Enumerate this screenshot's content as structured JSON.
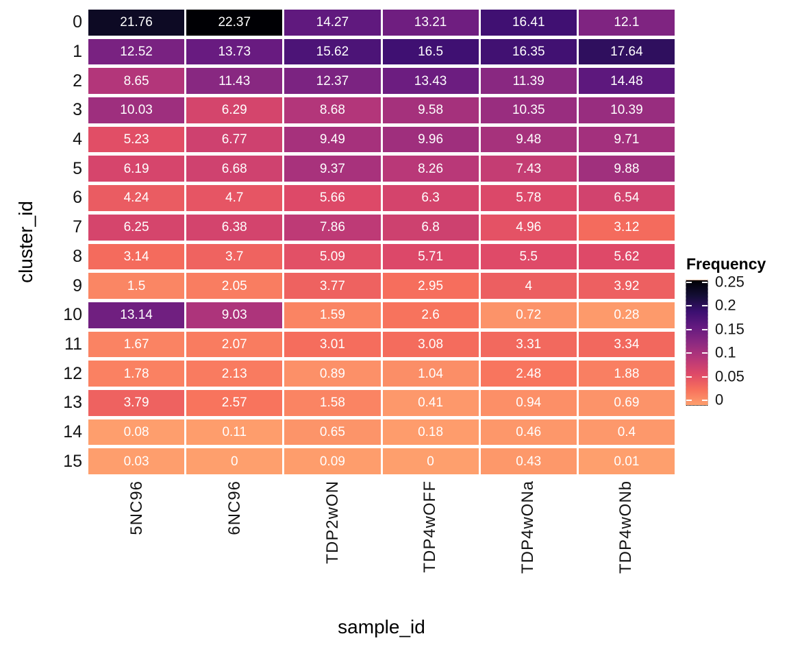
{
  "chart_data": {
    "type": "heatmap",
    "title": "",
    "xlabel": "sample_id",
    "ylabel": "cluster_id",
    "x_categories": [
      "5NC96",
      "6NC96",
      "TDP2wON",
      "TDP4wOFF",
      "TDP4wONa",
      "TDP4wONb"
    ],
    "y_categories": [
      "0",
      "1",
      "2",
      "3",
      "4",
      "5",
      "6",
      "7",
      "8",
      "9",
      "10",
      "11",
      "12",
      "13",
      "14",
      "15"
    ],
    "values": [
      [
        21.76,
        22.37,
        14.27,
        13.21,
        16.41,
        12.1
      ],
      [
        12.52,
        13.73,
        15.62,
        16.5,
        16.35,
        17.64
      ],
      [
        8.65,
        11.43,
        12.37,
        13.43,
        11.39,
        14.48
      ],
      [
        10.03,
        6.29,
        8.68,
        9.58,
        10.35,
        10.39
      ],
      [
        5.23,
        6.77,
        9.49,
        9.96,
        9.48,
        9.71
      ],
      [
        6.19,
        6.68,
        9.37,
        8.26,
        7.43,
        9.88
      ],
      [
        4.24,
        4.7,
        5.66,
        6.3,
        5.78,
        6.54
      ],
      [
        6.25,
        6.38,
        7.86,
        6.8,
        4.96,
        3.12
      ],
      [
        3.14,
        3.7,
        5.09,
        5.71,
        5.5,
        5.62
      ],
      [
        1.5,
        2.05,
        3.77,
        2.95,
        4,
        3.92
      ],
      [
        13.14,
        9.03,
        1.59,
        2.6,
        0.72,
        0.28
      ],
      [
        1.67,
        2.07,
        3.01,
        3.08,
        3.31,
        3.34
      ],
      [
        1.78,
        2.13,
        0.89,
        1.04,
        2.48,
        1.88
      ],
      [
        3.79,
        2.57,
        1.58,
        0.41,
        0.94,
        0.69
      ],
      [
        0.08,
        0.11,
        0.65,
        0.18,
        0.46,
        0.4
      ],
      [
        0.03,
        0,
        0.09,
        0,
        0.43,
        0.01
      ]
    ],
    "legend": {
      "title": "Frequency",
      "tick_labels": [
        "0.25",
        "0.2",
        "0.15",
        "0.1",
        "0.05",
        "0"
      ],
      "tick_positions_pct": [
        1.6,
        20.5,
        39.4,
        58.3,
        77.2,
        96.1
      ]
    },
    "colorscale": {
      "name": "magma-reversed-subrange",
      "stops_high_to_low": [
        "#000004",
        "#140E36",
        "#3B0F70",
        "#641A80",
        "#8C2981",
        "#B73779",
        "#DE4968",
        "#F7705C",
        "#FE9F6D"
      ],
      "value_domain": [
        0,
        22.37
      ]
    },
    "cell_text_color": "#FFFFFF",
    "cell_color_overrides": [
      {
        "row": 0,
        "col": 0,
        "color": "#0D0A24"
      }
    ],
    "layout": {
      "grid": "off",
      "legend_position": "right",
      "background": "#FFFFFF"
    }
  }
}
